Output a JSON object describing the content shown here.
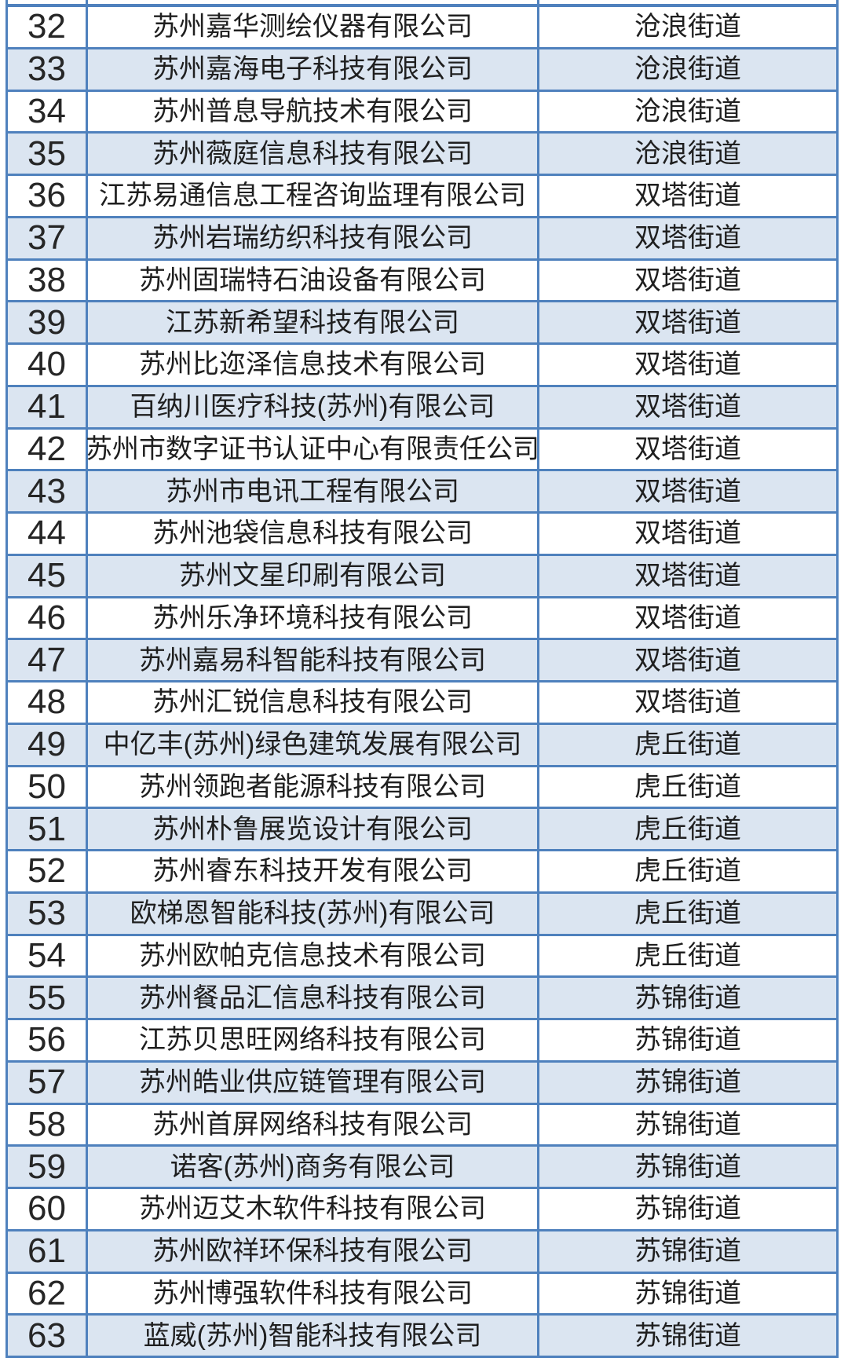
{
  "table": {
    "rows": [
      {
        "num": "32",
        "company": "苏州嘉华测绘仪器有限公司",
        "district": "沧浪街道"
      },
      {
        "num": "33",
        "company": "苏州嘉海电子科技有限公司",
        "district": "沧浪街道"
      },
      {
        "num": "34",
        "company": "苏州普息导航技术有限公司",
        "district": "沧浪街道"
      },
      {
        "num": "35",
        "company": "苏州薇庭信息科技有限公司",
        "district": "沧浪街道"
      },
      {
        "num": "36",
        "company": "江苏易通信息工程咨询监理有限公司",
        "district": "双塔街道"
      },
      {
        "num": "37",
        "company": "苏州岩瑞纺织科技有限公司",
        "district": "双塔街道"
      },
      {
        "num": "38",
        "company": "苏州固瑞特石油设备有限公司",
        "district": "双塔街道"
      },
      {
        "num": "39",
        "company": "江苏新希望科技有限公司",
        "district": "双塔街道"
      },
      {
        "num": "40",
        "company": "苏州比迩泽信息技术有限公司",
        "district": "双塔街道"
      },
      {
        "num": "41",
        "company": "百纳川医疗科技(苏州)有限公司",
        "district": "双塔街道"
      },
      {
        "num": "42",
        "company": "苏州市数字证书认证中心有限责任公司",
        "district": "双塔街道"
      },
      {
        "num": "43",
        "company": "苏州市电讯工程有限公司",
        "district": "双塔街道"
      },
      {
        "num": "44",
        "company": "苏州池袋信息科技有限公司",
        "district": "双塔街道"
      },
      {
        "num": "45",
        "company": "苏州文星印刷有限公司",
        "district": "双塔街道"
      },
      {
        "num": "46",
        "company": "苏州乐净环境科技有限公司",
        "district": "双塔街道"
      },
      {
        "num": "47",
        "company": "苏州嘉易科智能科技有限公司",
        "district": "双塔街道"
      },
      {
        "num": "48",
        "company": "苏州汇锐信息科技有限公司",
        "district": "双塔街道"
      },
      {
        "num": "49",
        "company": "中亿丰(苏州)绿色建筑发展有限公司",
        "district": "虎丘街道"
      },
      {
        "num": "50",
        "company": "苏州领跑者能源科技有限公司",
        "district": "虎丘街道"
      },
      {
        "num": "51",
        "company": "苏州朴鲁展览设计有限公司",
        "district": "虎丘街道"
      },
      {
        "num": "52",
        "company": "苏州睿东科技开发有限公司",
        "district": "虎丘街道"
      },
      {
        "num": "53",
        "company": "欧梯恩智能科技(苏州)有限公司",
        "district": "虎丘街道"
      },
      {
        "num": "54",
        "company": "苏州欧帕克信息技术有限公司",
        "district": "虎丘街道"
      },
      {
        "num": "55",
        "company": "苏州餐品汇信息科技有限公司",
        "district": "苏锦街道"
      },
      {
        "num": "56",
        "company": "江苏贝思旺网络科技有限公司",
        "district": "苏锦街道"
      },
      {
        "num": "57",
        "company": "苏州皓业供应链管理有限公司",
        "district": "苏锦街道"
      },
      {
        "num": "58",
        "company": "苏州首屏网络科技有限公司",
        "district": "苏锦街道"
      },
      {
        "num": "59",
        "company": "诺客(苏州)商务有限公司",
        "district": "苏锦街道"
      },
      {
        "num": "60",
        "company": "苏州迈艾木软件科技有限公司",
        "district": "苏锦街道"
      },
      {
        "num": "61",
        "company": "苏州欧祥环保科技有限公司",
        "district": "苏锦街道"
      },
      {
        "num": "62",
        "company": "苏州博强软件科技有限公司",
        "district": "苏锦街道"
      },
      {
        "num": "63",
        "company": "蓝威(苏州)智能科技有限公司",
        "district": "苏锦街道"
      }
    ]
  },
  "colors": {
    "border": "#4f81bd",
    "row_shaded": "#dbe5f1",
    "row_plain": "#ffffff",
    "text": "#1f1f1f"
  }
}
